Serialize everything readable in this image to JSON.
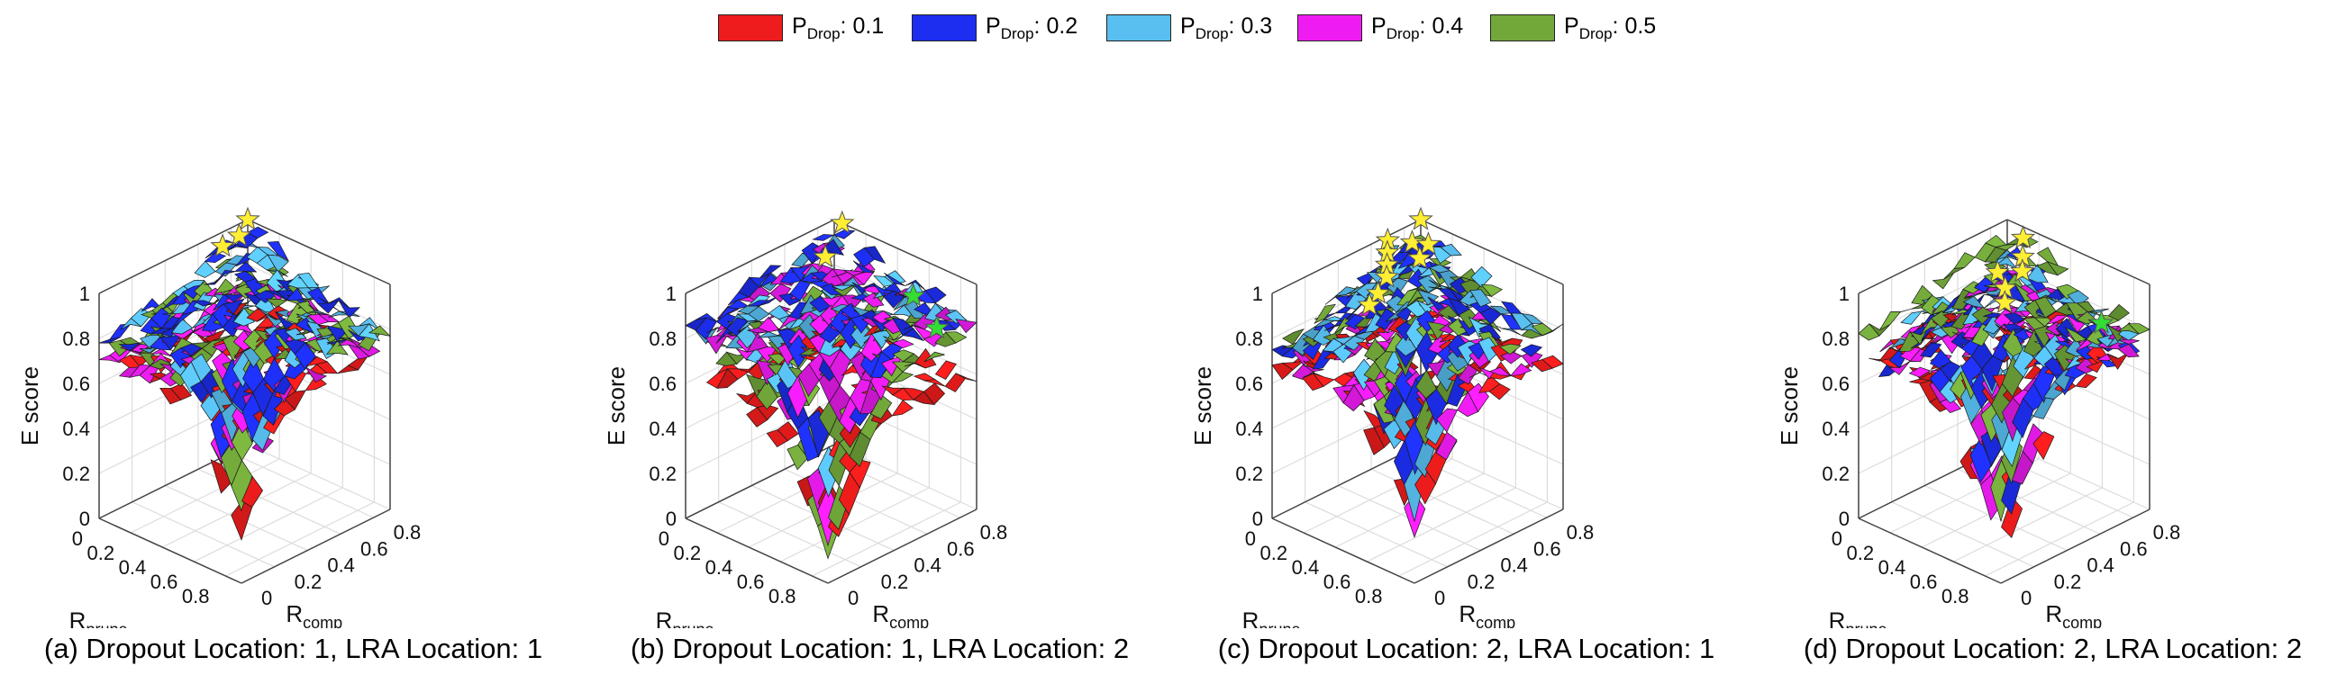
{
  "legend": {
    "items": [
      {
        "prefix": "P",
        "sub": "Drop",
        "value": ": 0.1",
        "color": "#ee1c1c"
      },
      {
        "prefix": "P",
        "sub": "Drop",
        "value": ": 0.2",
        "color": "#1d2ef0"
      },
      {
        "prefix": "P",
        "sub": "Drop",
        "value": ": 0.3",
        "color": "#58bff0"
      },
      {
        "prefix": "P",
        "sub": "Drop",
        "value": ": 0.4",
        "color": "#ee1cf2"
      },
      {
        "prefix": "P",
        "sub": "Drop",
        "value": ": 0.5",
        "color": "#72a83a"
      }
    ]
  },
  "chart_data": [
    {
      "type": "surface3d",
      "caption": "(a) Dropout Location: 1, LRA Location: 1",
      "zlabel": "E score",
      "xlabel_main": "R",
      "xlabel_sub": "prune",
      "ylabel_main": "R",
      "ylabel_sub": "comp",
      "x_ticks": [
        "0",
        "0.2",
        "0.4",
        "0.6",
        "0.8"
      ],
      "y_ticks": [
        "0",
        "0.2",
        "0.4",
        "0.6",
        "0.8"
      ],
      "z_ticks": [
        "0",
        "0.2",
        "0.4",
        "0.6",
        "0.8",
        "1"
      ],
      "xlim": [
        0,
        0.9
      ],
      "ylim": [
        0,
        0.9
      ],
      "zlim": [
        0,
        1
      ],
      "grid": true,
      "surfaces": [
        {
          "pdrop": 0.1,
          "peak": 0.66,
          "corner": 0.72,
          "valley": 0.22
        },
        {
          "pdrop": 0.2,
          "peak": 0.99,
          "corner": 0.8,
          "valley": 0.3
        },
        {
          "pdrop": 0.3,
          "peak": 0.93,
          "corner": 0.8,
          "valley": 0.36
        },
        {
          "pdrop": 0.4,
          "peak": 0.84,
          "corner": 0.7,
          "valley": 0.32
        },
        {
          "pdrop": 0.5,
          "peak": 0.87,
          "corner": 0.78,
          "valley": 0.34
        }
      ],
      "stars": [
        {
          "x": 0.0,
          "y": 0.0,
          "z": 1.0,
          "color": "#ffee33"
        },
        {
          "x": 0.05,
          "y": 0.1,
          "z": 0.98,
          "color": "#ffee33"
        },
        {
          "x": 0.05,
          "y": 0.2,
          "z": 0.97,
          "color": "#ffee33"
        }
      ]
    },
    {
      "type": "surface3d",
      "caption": "(b) Dropout Location: 1, LRA Location: 2",
      "zlabel": "E score",
      "xlabel_main": "R",
      "xlabel_sub": "prune",
      "ylabel_main": "R",
      "ylabel_sub": "comp",
      "x_ticks": [
        "0",
        "0.2",
        "0.4",
        "0.6",
        "0.8"
      ],
      "y_ticks": [
        "0",
        "0.2",
        "0.4",
        "0.6",
        "0.8"
      ],
      "z_ticks": [
        "0",
        "0.2",
        "0.4",
        "0.6",
        "0.8",
        "1"
      ],
      "xlim": [
        0,
        0.9
      ],
      "ylim": [
        0,
        0.9
      ],
      "zlim": [
        0,
        1
      ],
      "grid": true,
      "surfaces": [
        {
          "pdrop": 0.1,
          "peak": 0.62,
          "corner": 0.58,
          "valley": 0.08
        },
        {
          "pdrop": 0.2,
          "peak": 0.99,
          "corner": 0.86,
          "valley": 0.2
        },
        {
          "pdrop": 0.3,
          "peak": 0.92,
          "corner": 0.84,
          "valley": 0.14
        },
        {
          "pdrop": 0.4,
          "peak": 0.9,
          "corner": 0.82,
          "valley": 0.18
        },
        {
          "pdrop": 0.5,
          "peak": 0.72,
          "corner": 0.76,
          "valley": 0.1
        }
      ],
      "stars": [
        {
          "x": 0.05,
          "y": 0.0,
          "z": 1.0,
          "color": "#ffee33"
        },
        {
          "x": 0.1,
          "y": 0.15,
          "z": 0.92,
          "color": "#ffee33"
        },
        {
          "x": 0.5,
          "y": 0.0,
          "z": 0.82,
          "color": "#33dd33"
        },
        {
          "x": 0.7,
          "y": 0.05,
          "z": 0.76,
          "color": "#33dd33"
        }
      ]
    },
    {
      "type": "surface3d",
      "caption": "(c) Dropout Location: 2, LRA Location: 1",
      "zlabel": "E score",
      "xlabel_main": "R",
      "xlabel_sub": "prune",
      "ylabel_main": "R",
      "ylabel_sub": "comp",
      "x_ticks": [
        "0",
        "0.2",
        "0.4",
        "0.6",
        "0.8"
      ],
      "y_ticks": [
        "0",
        "0.2",
        "0.4",
        "0.6",
        "0.8"
      ],
      "z_ticks": [
        "0",
        "0.2",
        "0.4",
        "0.6",
        "0.8",
        "1"
      ],
      "xlim": [
        0,
        0.9
      ],
      "ylim": [
        0,
        0.9
      ],
      "zlim": [
        0,
        1
      ],
      "grid": true,
      "surfaces": [
        {
          "pdrop": 0.1,
          "peak": 0.62,
          "corner": 0.66,
          "valley": 0.28
        },
        {
          "pdrop": 0.2,
          "peak": 0.98,
          "corner": 0.74,
          "valley": 0.26
        },
        {
          "pdrop": 0.3,
          "peak": 0.99,
          "corner": 0.8,
          "valley": 0.3
        },
        {
          "pdrop": 0.4,
          "peak": 0.74,
          "corner": 0.68,
          "valley": 0.22
        },
        {
          "pdrop": 0.5,
          "peak": 0.93,
          "corner": 0.78,
          "valley": 0.32
        }
      ],
      "stars": [
        {
          "x": 0.0,
          "y": 0.0,
          "z": 1.0,
          "color": "#ffee33"
        },
        {
          "x": 0.05,
          "y": 0.1,
          "z": 0.95,
          "color": "#ffee33"
        },
        {
          "x": 0.1,
          "y": 0.05,
          "z": 0.94,
          "color": "#ffee33"
        },
        {
          "x": 0.0,
          "y": 0.2,
          "z": 0.98,
          "color": "#ffee33"
        },
        {
          "x": 0.05,
          "y": 0.25,
          "z": 0.96,
          "color": "#ffee33"
        },
        {
          "x": 0.15,
          "y": 0.15,
          "z": 0.93,
          "color": "#ffee33"
        },
        {
          "x": 0.1,
          "y": 0.3,
          "z": 0.94,
          "color": "#ffee33"
        },
        {
          "x": 0.15,
          "y": 0.35,
          "z": 0.92,
          "color": "#ffee33"
        },
        {
          "x": 0.2,
          "y": 0.45,
          "z": 0.9,
          "color": "#ffee33"
        },
        {
          "x": 0.25,
          "y": 0.55,
          "z": 0.9,
          "color": "#ffee33"
        }
      ]
    },
    {
      "type": "surface3d",
      "caption": "(d) Dropout Location: 2, LRA Location: 2",
      "zlabel": "E score",
      "xlabel_main": "R",
      "xlabel_sub": "prune",
      "ylabel_main": "R",
      "ylabel_sub": "comp",
      "x_ticks": [
        "0",
        "0.2",
        "0.4",
        "0.6",
        "0.8"
      ],
      "y_ticks": [
        "0",
        "0.2",
        "0.4",
        "0.6",
        "0.8"
      ],
      "z_ticks": [
        "0",
        "0.2",
        "0.4",
        "0.6",
        "0.8",
        "1"
      ],
      "xlim": [
        0,
        0.9
      ],
      "ylim": [
        0,
        0.9
      ],
      "zlim": [
        0,
        1
      ],
      "grid": true,
      "surfaces": [
        {
          "pdrop": 0.1,
          "peak": 0.66,
          "corner": 0.72,
          "valley": 0.06
        },
        {
          "pdrop": 0.2,
          "peak": 0.9,
          "corner": 0.7,
          "valley": 0.14
        },
        {
          "pdrop": 0.3,
          "peak": 0.86,
          "corner": 0.78,
          "valley": 0.18
        },
        {
          "pdrop": 0.4,
          "peak": 0.8,
          "corner": 0.72,
          "valley": 0.16
        },
        {
          "pdrop": 0.5,
          "peak": 0.99,
          "corner": 0.82,
          "valley": 0.3
        }
      ],
      "stars": [
        {
          "x": 0.1,
          "y": 0.0,
          "z": 0.95,
          "color": "#ffee33"
        },
        {
          "x": 0.15,
          "y": 0.05,
          "z": 0.9,
          "color": "#ffee33"
        },
        {
          "x": 0.2,
          "y": 0.1,
          "z": 0.87,
          "color": "#ffee33"
        },
        {
          "x": 0.2,
          "y": 0.25,
          "z": 0.92,
          "color": "#ffee33"
        },
        {
          "x": 0.3,
          "y": 0.3,
          "z": 0.9,
          "color": "#ffee33"
        },
        {
          "x": 0.35,
          "y": 0.35,
          "z": 0.87,
          "color": "#ffee33"
        },
        {
          "x": 0.7,
          "y": 0.1,
          "z": 0.8,
          "color": "#33dd33"
        }
      ]
    }
  ]
}
